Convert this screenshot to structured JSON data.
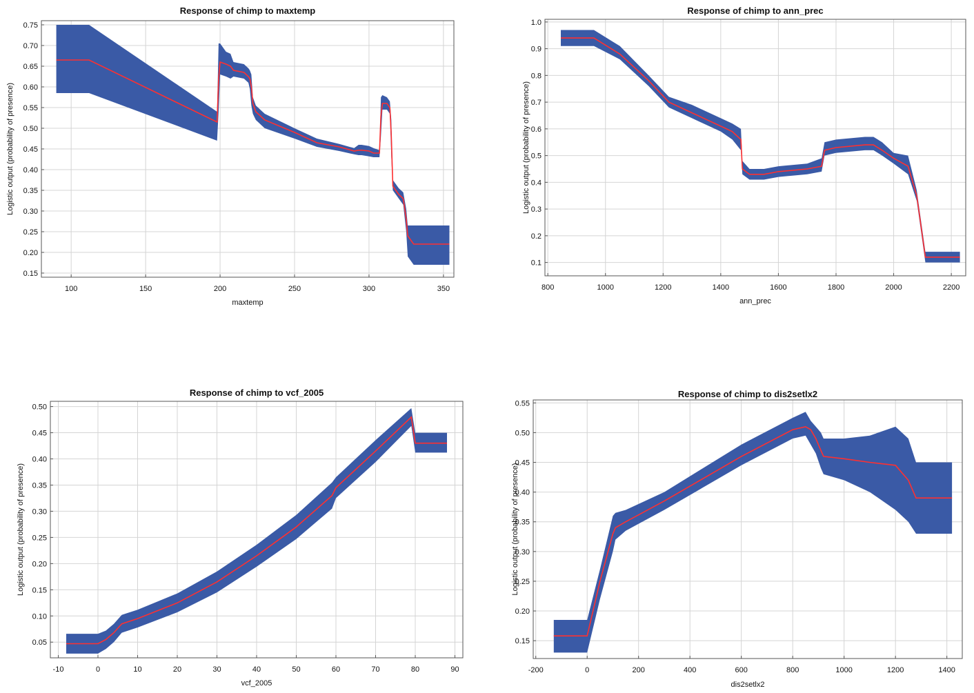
{
  "colors": {
    "band": "#3a5aa6",
    "line": "#ff3030",
    "grid": "#d4d4d4"
  },
  "chart_data": [
    {
      "type": "area",
      "title": "Response of chimp to maxtemp",
      "xlabel": "maxtemp",
      "ylabel": "Logistic output (probability of presence)",
      "xlim": [
        80,
        357
      ],
      "ylim": [
        0.14,
        0.76
      ],
      "xticks": [
        100,
        150,
        200,
        250,
        300,
        350
      ],
      "yticks": [
        0.15,
        0.2,
        0.25,
        0.3,
        0.35,
        0.4,
        0.45,
        0.5,
        0.55,
        0.6,
        0.65,
        0.7,
        0.75
      ],
      "grid": true,
      "series": [
        {
          "x": [
            90,
            112,
            198,
            199,
            200,
            204,
            207,
            209,
            216,
            219,
            220,
            221,
            222,
            224,
            230,
            250,
            265,
            280,
            290,
            293,
            295,
            300,
            303,
            307,
            308,
            309,
            312,
            314,
            315,
            316,
            318,
            320,
            323,
            325,
            326,
            330,
            354
          ],
          "mean": [
            0.665,
            0.665,
            0.515,
            0.62,
            0.66,
            0.655,
            0.65,
            0.64,
            0.635,
            0.625,
            0.62,
            0.6,
            0.56,
            0.54,
            0.52,
            0.49,
            0.465,
            0.455,
            0.445,
            0.447,
            0.447,
            0.445,
            0.44,
            0.44,
            0.53,
            0.56,
            0.56,
            0.55,
            0.48,
            0.36,
            0.35,
            0.34,
            0.33,
            0.28,
            0.24,
            0.22,
            0.22
          ],
          "upper": [
            0.75,
            0.75,
            0.54,
            0.705,
            0.705,
            0.685,
            0.68,
            0.66,
            0.655,
            0.645,
            0.64,
            0.63,
            0.575,
            0.555,
            0.535,
            0.5,
            0.475,
            0.462,
            0.452,
            0.46,
            0.46,
            0.457,
            0.452,
            0.447,
            0.575,
            0.58,
            0.575,
            0.565,
            0.52,
            0.375,
            0.365,
            0.355,
            0.345,
            0.305,
            0.265,
            0.265,
            0.265
          ],
          "lower": [
            0.585,
            0.585,
            0.47,
            0.54,
            0.63,
            0.625,
            0.62,
            0.625,
            0.62,
            0.61,
            0.595,
            0.555,
            0.535,
            0.52,
            0.5,
            0.475,
            0.455,
            0.445,
            0.437,
            0.435,
            0.435,
            0.432,
            0.43,
            0.43,
            0.48,
            0.545,
            0.545,
            0.535,
            0.43,
            0.35,
            0.34,
            0.33,
            0.315,
            0.25,
            0.19,
            0.17,
            0.17
          ]
        }
      ]
    },
    {
      "type": "area",
      "title": "Response of chimp to ann_prec",
      "xlabel": "ann_prec",
      "ylabel": "Logistic output (probability of presence)",
      "xlim": [
        790,
        2250
      ],
      "ylim": [
        0.05,
        1.01
      ],
      "xticks": [
        800,
        1000,
        1200,
        1400,
        1600,
        1800,
        2000,
        2200
      ],
      "yticks": [
        0.1,
        0.2,
        0.3,
        0.4,
        0.5,
        0.6,
        0.7,
        0.8,
        0.9,
        1.0
      ],
      "grid": true,
      "series": [
        {
          "x": [
            845,
            960,
            1050,
            1150,
            1220,
            1300,
            1400,
            1440,
            1470,
            1475,
            1500,
            1550,
            1600,
            1700,
            1750,
            1760,
            1800,
            1900,
            1930,
            1960,
            2000,
            2050,
            2080,
            2110,
            2230
          ],
          "mean": [
            0.94,
            0.94,
            0.88,
            0.78,
            0.7,
            0.66,
            0.61,
            0.59,
            0.56,
            0.45,
            0.43,
            0.43,
            0.44,
            0.45,
            0.46,
            0.52,
            0.53,
            0.54,
            0.54,
            0.52,
            0.49,
            0.46,
            0.35,
            0.12,
            0.12
          ],
          "upper": [
            0.97,
            0.97,
            0.91,
            0.8,
            0.72,
            0.69,
            0.64,
            0.62,
            0.6,
            0.48,
            0.45,
            0.45,
            0.46,
            0.47,
            0.49,
            0.55,
            0.56,
            0.57,
            0.57,
            0.55,
            0.51,
            0.5,
            0.37,
            0.14,
            0.14
          ],
          "lower": [
            0.91,
            0.91,
            0.86,
            0.76,
            0.68,
            0.64,
            0.59,
            0.56,
            0.52,
            0.43,
            0.41,
            0.41,
            0.42,
            0.43,
            0.44,
            0.5,
            0.51,
            0.52,
            0.52,
            0.5,
            0.47,
            0.43,
            0.33,
            0.1,
            0.1
          ]
        }
      ]
    },
    {
      "type": "area",
      "title": "Response of chimp to vcf_2005",
      "xlabel": "vcf_2005",
      "ylabel": "Logistic output (probability of presence)",
      "xlim": [
        -12,
        92
      ],
      "ylim": [
        0.02,
        0.51
      ],
      "xticks": [
        -10,
        0,
        10,
        20,
        30,
        40,
        50,
        60,
        70,
        80,
        90
      ],
      "yticks": [
        0.05,
        0.1,
        0.15,
        0.2,
        0.25,
        0.3,
        0.35,
        0.4,
        0.45,
        0.5
      ],
      "grid": true,
      "series": [
        {
          "x": [
            -8,
            0,
            2,
            4,
            6,
            10,
            20,
            30,
            40,
            50,
            59,
            60,
            70,
            79,
            80,
            88
          ],
          "mean": [
            0.047,
            0.047,
            0.055,
            0.068,
            0.085,
            0.095,
            0.125,
            0.165,
            0.215,
            0.27,
            0.33,
            0.345,
            0.415,
            0.48,
            0.43,
            0.43
          ],
          "upper": [
            0.066,
            0.066,
            0.072,
            0.085,
            0.102,
            0.112,
            0.143,
            0.185,
            0.236,
            0.293,
            0.355,
            0.365,
            0.436,
            0.497,
            0.45,
            0.45
          ],
          "lower": [
            0.028,
            0.028,
            0.037,
            0.05,
            0.068,
            0.078,
            0.107,
            0.145,
            0.194,
            0.247,
            0.305,
            0.325,
            0.394,
            0.463,
            0.412,
            0.412
          ]
        }
      ]
    },
    {
      "type": "area",
      "title": "Response of chimp to dis2setlx2",
      "xlabel": "dis2setlx2",
      "ylabel": "Logistic output (probability of presence)",
      "xlim": [
        -210,
        1460
      ],
      "ylim": [
        0.12,
        0.555
      ],
      "xticks": [
        -200,
        0,
        200,
        400,
        600,
        800,
        1000,
        1200,
        1400
      ],
      "yticks": [
        0.15,
        0.2,
        0.25,
        0.3,
        0.35,
        0.4,
        0.45,
        0.5,
        0.55
      ],
      "grid": true,
      "series": [
        {
          "x": [
            -130,
            0,
            50,
            100,
            110,
            150,
            300,
            600,
            800,
            850,
            870,
            890,
            910,
            920,
            1000,
            1100,
            1200,
            1250,
            1280,
            1300,
            1420
          ],
          "mean": [
            0.158,
            0.158,
            0.25,
            0.33,
            0.34,
            0.35,
            0.385,
            0.46,
            0.505,
            0.51,
            0.505,
            0.49,
            0.47,
            0.46,
            0.456,
            0.45,
            0.445,
            0.42,
            0.39,
            0.39,
            0.39
          ],
          "upper": [
            0.185,
            0.185,
            0.27,
            0.36,
            0.365,
            0.37,
            0.4,
            0.48,
            0.525,
            0.535,
            0.52,
            0.51,
            0.5,
            0.49,
            0.49,
            0.495,
            0.51,
            0.49,
            0.45,
            0.45,
            0.45
          ],
          "lower": [
            0.13,
            0.13,
            0.22,
            0.3,
            0.32,
            0.335,
            0.37,
            0.445,
            0.49,
            0.495,
            0.48,
            0.465,
            0.44,
            0.43,
            0.42,
            0.4,
            0.37,
            0.35,
            0.33,
            0.33,
            0.33
          ]
        }
      ]
    }
  ]
}
